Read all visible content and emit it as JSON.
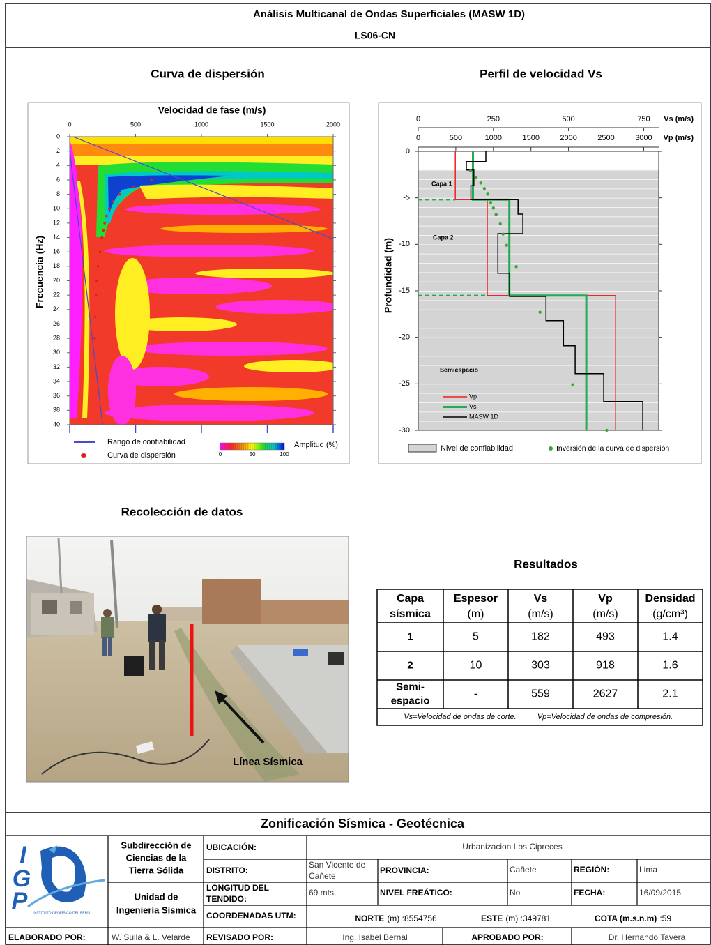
{
  "header": {
    "title": "Análisis Multicanal de Ondas Superficiales (MASW 1D)",
    "code": "LS06-CN"
  },
  "chart_data": [
    {
      "type": "heatmap",
      "title": "Curva de dispersión",
      "x_label": "Velocidad de fase (m/s)",
      "y_label": "Frecuencia (Hz)",
      "xlim": [
        0,
        2000
      ],
      "xticks": [
        0,
        500,
        1000,
        1500,
        2000
      ],
      "ylim": [
        0,
        40
      ],
      "y_inverted": true,
      "yticks": [
        0,
        2,
        4,
        6,
        8,
        10,
        12,
        14,
        16,
        18,
        20,
        22,
        24,
        26,
        28,
        30,
        32,
        34,
        36,
        38,
        40
      ],
      "series": [
        {
          "name": "Rango de confiabilidad",
          "color": "#4a4ad0",
          "type": "line",
          "x": [
            0,
            250,
            null,
            25,
            2000
          ],
          "y": [
            2,
            40,
            null,
            0,
            14.2
          ]
        },
        {
          "name": "Curva de dispersión",
          "color": "#e02020",
          "type": "scatter",
          "x": [
            620,
            480,
            380,
            330,
            300,
            280,
            265,
            255,
            245,
            230,
            215,
            205,
            200,
            195,
            190
          ],
          "y": [
            6,
            7,
            8,
            9,
            10,
            11,
            12,
            13,
            14,
            16,
            18,
            20,
            22,
            25,
            28
          ]
        }
      ],
      "colorbar": {
        "label": "Amplitud (%)",
        "lim": [
          0,
          100
        ],
        "ticks": [
          0,
          50,
          100
        ],
        "colors": [
          "#ff00ff",
          "#ff2020",
          "#ff8800",
          "#ffff00",
          "#22dd22",
          "#00cccc",
          "#0000dd"
        ]
      }
    },
    {
      "type": "step",
      "title": "Perfil de velocidad Vs",
      "y_label": "Profundidad (m)",
      "ylim": [
        -30,
        0
      ],
      "yticks": [
        0,
        -5,
        -10,
        -15,
        -20,
        -25,
        -30
      ],
      "x_axes": [
        {
          "label": "Vs (m/s)",
          "xlim": [
            0,
            800
          ],
          "xticks": [
            0,
            250,
            500,
            750
          ]
        },
        {
          "label": "Vp (m/s)",
          "xlim": [
            0,
            3200
          ],
          "xticks": [
            0,
            500,
            1000,
            1500,
            2000,
            2500,
            3000
          ]
        }
      ],
      "confidence": {
        "name": "Nivel de confiabilidad",
        "top": -2,
        "color": "#d4d4d4"
      },
      "boundaries": {
        "color": "#22aa55",
        "depths": [
          -5.2,
          -15.5
        ]
      },
      "annotations": [
        "Capa 1",
        "Capa 2",
        "Semiespacio"
      ],
      "series": [
        {
          "name": "Vp",
          "color": "#ee2222",
          "axis": "x2",
          "x": [
            493,
            493,
            918,
            918,
            2627,
            2627
          ],
          "y": [
            0,
            -5.2,
            -5.2,
            -15.5,
            -15.5,
            -30
          ]
        },
        {
          "name": "Vs",
          "color": "#22aa55",
          "axis": "x",
          "x": [
            182,
            182,
            303,
            303,
            559,
            559
          ],
          "y": [
            0,
            -5.2,
            -5.2,
            -15.5,
            -15.5,
            -30
          ]
        },
        {
          "name": "MASW 1D",
          "color": "#000000",
          "axis": "x",
          "x": [
            225,
            225,
            160,
            160,
            185,
            185,
            175,
            175,
            332,
            332,
            348,
            348,
            265,
            265,
            304,
            304,
            425,
            425,
            483,
            483,
            522,
            522,
            617,
            617,
            747,
            747
          ],
          "y": [
            0,
            -1.1,
            -1.1,
            -2,
            -2,
            -3.7,
            -3.7,
            -5.2,
            -5.2,
            -6.75,
            -6.75,
            -8.85,
            -8.85,
            -13.1,
            -13.1,
            -15.6,
            -15.6,
            -18.2,
            -18.2,
            -20.9,
            -20.9,
            -23.9,
            -23.9,
            -26.9,
            -26.9,
            -30
          ]
        },
        {
          "name": "Inversión de la curva de dispersión",
          "color": "#33aa33",
          "type": "scatter",
          "axis": "x",
          "x": [
            174,
            192,
            208,
            220,
            231,
            241,
            250,
            259,
            273,
            282,
            294,
            326,
            405,
            514,
            627
          ],
          "y": [
            -2.1,
            -2.85,
            -3.4,
            -4,
            -4.6,
            -5.5,
            -6.1,
            -6.8,
            -7.8,
            -8.9,
            -10.1,
            -12.4,
            -17.3,
            -25.1,
            -30
          ]
        }
      ]
    }
  ],
  "photo": {
    "title": "Recolección de datos",
    "caption": "Línea Sísmica"
  },
  "results": {
    "title": "Resultados",
    "header": [
      [
        "Capa",
        "sísmica"
      ],
      [
        "Espesor",
        "(m)"
      ],
      [
        "Vs",
        "(m/s)"
      ],
      [
        "Vp",
        "(m/s)"
      ],
      [
        "Densidad",
        "(g/cm³)"
      ]
    ],
    "rows": [
      [
        [
          "1"
        ],
        5,
        182,
        493,
        1.4
      ],
      [
        [
          "2"
        ],
        10,
        303,
        918,
        1.6
      ],
      [
        [
          "Semi-",
          "espacio"
        ],
        "-",
        559,
        2627,
        2.1
      ]
    ],
    "notes": [
      "Vs=Velocidad de ondas de corte.",
      "Vp=Velocidad de ondas de compresión."
    ]
  },
  "footer": {
    "title": "Zonificación Sísmica - Geotécnica",
    "logo": {
      "letters": [
        "I",
        "G",
        "P"
      ],
      "name": "INSTITUTO GEOFÍSICO DEL PERÚ"
    },
    "units": [
      [
        "Subdirección de",
        "Ciencias de la",
        "Tierra Sólida"
      ],
      [
        "Unidad de",
        "Ingeniería Sísmica"
      ]
    ],
    "ubicacion": {
      "label": "UBICACIÓN:",
      "value": "Urbanizacion Los Cipreces"
    },
    "distrito": {
      "label": "DISTRITO:",
      "value": [
        "San Vicente de",
        "Cañete"
      ]
    },
    "provincia": {
      "label": "PROVINCIA:",
      "value": "Cañete"
    },
    "region": {
      "label": "REGIÓN:",
      "value": "Lima"
    },
    "longitud": {
      "label": [
        "LONGITUD DEL",
        "TENDIDO:"
      ],
      "value": "69 mts."
    },
    "nivel": {
      "label": "NIVEL FREÁTICO:",
      "value": "No"
    },
    "fecha": {
      "label": "FECHA:",
      "value": "16/09/2015"
    },
    "coordenadas": {
      "label": "COORDENADAS UTM:",
      "norte": {
        "label": "NORTE",
        "unit": "(m) :",
        "value": 8554756
      },
      "este": {
        "label": "ESTE",
        "unit": "(m) :",
        "value": 349781
      },
      "cota": {
        "label": "COTA (m.s.n.m)",
        "unit": ":",
        "value": 59
      }
    },
    "elaborado": {
      "label": "ELABORADO POR:",
      "value": "W. Sulla & L. Velarde"
    },
    "revisado": {
      "label": "REVISADO POR:",
      "value": "Ing. Isabel Bernal"
    },
    "aprobado": {
      "label": "APROBADO POR:",
      "value": "Dr. Hernando Tavera"
    }
  }
}
